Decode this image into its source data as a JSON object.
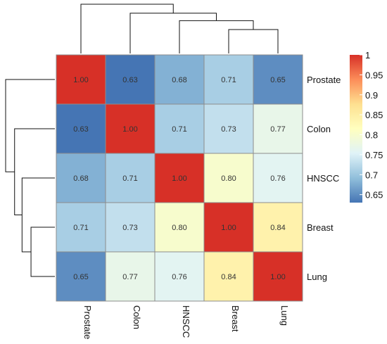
{
  "chart_data": {
    "type": "heatmap",
    "title": "",
    "rows": [
      "Prostate",
      "Colon",
      "HNSCC",
      "Breast",
      "Lung"
    ],
    "columns": [
      "Prostate",
      "Colon",
      "HNSCC",
      "Breast",
      "Lung"
    ],
    "values": [
      [
        1.0,
        0.63,
        0.68,
        0.71,
        0.65
      ],
      [
        0.63,
        1.0,
        0.71,
        0.73,
        0.77
      ],
      [
        0.68,
        0.71,
        1.0,
        0.8,
        0.76
      ],
      [
        0.71,
        0.73,
        0.8,
        1.0,
        0.84
      ],
      [
        0.65,
        0.77,
        0.76,
        0.84,
        1.0
      ]
    ],
    "cell_labels": [
      [
        "1.00",
        "0.63",
        "0.68",
        "0.71",
        "0.65"
      ],
      [
        "0.63",
        "1.00",
        "0.71",
        "0.73",
        "0.77"
      ],
      [
        "0.68",
        "0.71",
        "1.00",
        "0.80",
        "0.76"
      ],
      [
        "0.71",
        "0.73",
        "0.80",
        "1.00",
        "0.84"
      ],
      [
        "0.65",
        "0.77",
        "0.76",
        "0.84",
        "1.00"
      ]
    ],
    "colorbar": {
      "range": [
        0.63,
        1.0
      ],
      "ticks": [
        1,
        0.95,
        0.9,
        0.85,
        0.8,
        0.75,
        0.7,
        0.65
      ],
      "tick_labels": [
        "1",
        "0.95",
        "0.9",
        "0.85",
        "0.8",
        "0.75",
        "0.7",
        "0.65"
      ],
      "colors": [
        "#4575b4",
        "#91bfdb",
        "#e0f3f8",
        "#ffffbf",
        "#fee090",
        "#fc8d59",
        "#d73027"
      ],
      "placement": "right"
    },
    "column_dendrogram": {
      "leaf_order": [
        "Prostate",
        "Colon",
        "HNSCC",
        "Breast",
        "Lung"
      ],
      "merges": [
        {
          "left": "Breast",
          "right": "Lung",
          "height": 0.16
        },
        {
          "left": "HNSCC",
          "right": "Breast+Lung",
          "height": 0.22
        },
        {
          "left": "Colon",
          "right": "HNSCC+Breast+Lung",
          "height": 0.27
        },
        {
          "left": "Prostate",
          "right": "Colon+HNSCC+Breast+Lung",
          "height": 0.33
        }
      ]
    },
    "row_dendrogram": {
      "leaf_order": [
        "Prostate",
        "Colon",
        "HNSCC",
        "Breast",
        "Lung"
      ],
      "merges": [
        {
          "left": "Breast",
          "right": "Lung",
          "height": 0.16
        },
        {
          "left": "HNSCC",
          "right": "Breast+Lung",
          "height": 0.22
        },
        {
          "left": "Colon",
          "right": "HNSCC+Breast+Lung",
          "height": 0.27
        },
        {
          "left": "Prostate",
          "right": "Colon+HNSCC+Breast+Lung",
          "height": 0.33
        }
      ]
    }
  }
}
